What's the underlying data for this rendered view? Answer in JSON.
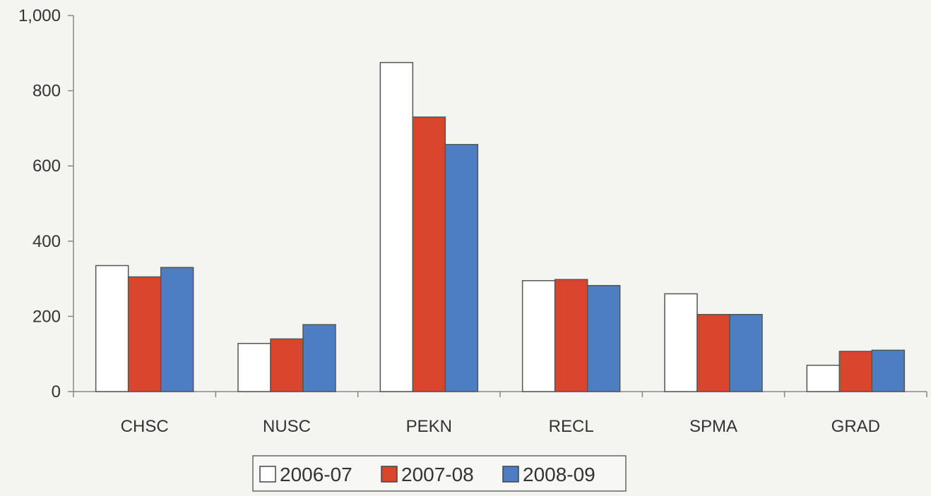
{
  "chart_data": {
    "type": "bar",
    "categories": [
      "CHSC",
      "NUSC",
      "PEKN",
      "RECL",
      "SPMA",
      "GRAD"
    ],
    "series": [
      {
        "name": "2006-07",
        "values": [
          335,
          128,
          875,
          295,
          260,
          70
        ],
        "color": "#ffffff"
      },
      {
        "name": "2007-08",
        "values": [
          305,
          140,
          730,
          298,
          205,
          107
        ],
        "color": "#d8452a"
      },
      {
        "name": "2008-09",
        "values": [
          330,
          178,
          657,
          282,
          205,
          110
        ],
        "color": "#4d7ec2"
      }
    ],
    "ylim": [
      0,
      1000
    ],
    "yticks": [
      0,
      200,
      400,
      600,
      800,
      1000
    ],
    "ytick_labels": [
      "0",
      "200",
      "400",
      "600",
      "800",
      "1,000"
    ],
    "grid": false,
    "legend_position": "bottom-center"
  }
}
